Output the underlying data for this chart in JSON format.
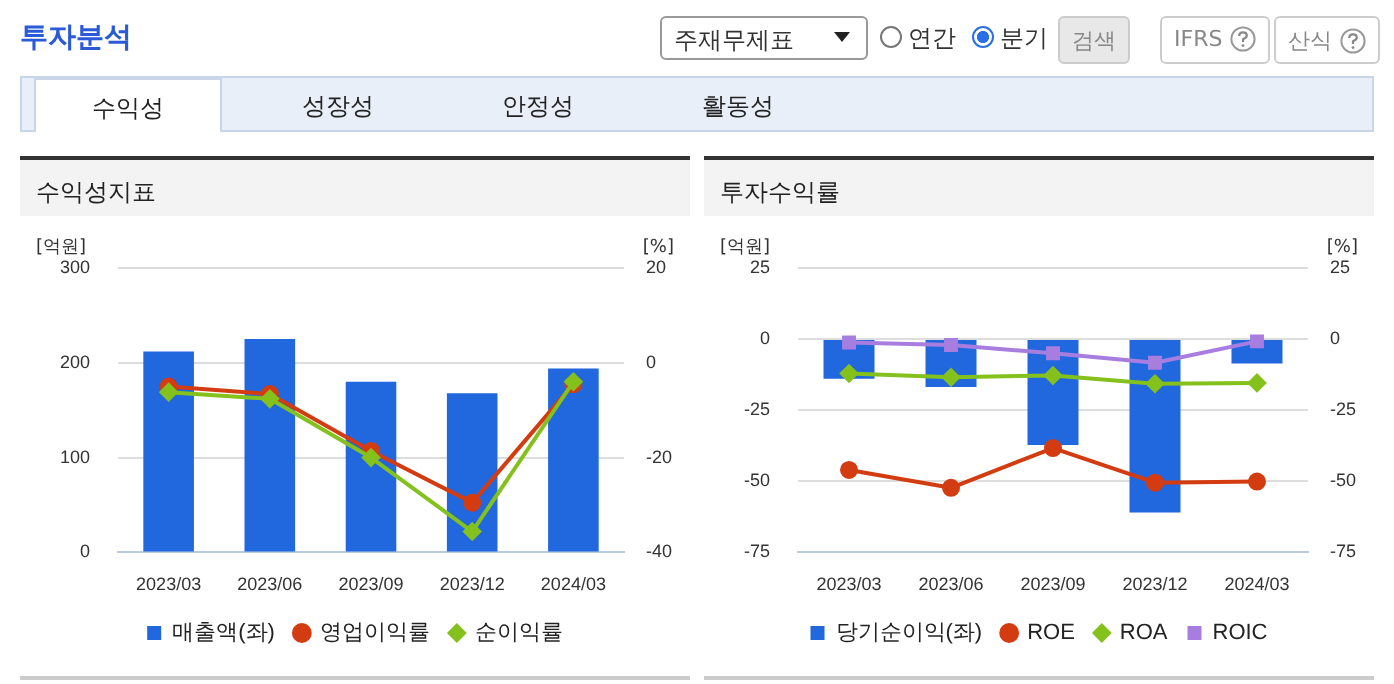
{
  "chart_data": [
    {
      "type": "bar",
      "title": "수익성지표",
      "ylabel": "[억원]",
      "y2label": "[%]",
      "annotations": [
        "투자분석",
        "주재무제표",
        "연간",
        "분기",
        "검색",
        "IFRS",
        "산식",
        "수익성",
        "성장성",
        "안정성",
        "활동성"
      ],
      "categories": [
        "2023/03",
        "2023/06",
        "2023/09",
        "2023/12",
        "2024/03"
      ],
      "series": [
        {
          "name": "매출액(좌)",
          "color": "#2167dd",
          "values": [
            212,
            225,
            180,
            168,
            194
          ]
        },
        {
          "name": "영업이익률",
          "type": "line",
          "axis": "y2",
          "marker": "circle",
          "color": "#d33c10",
          "values": [
            -5,
            -6.6,
            -18.6,
            -29.5,
            -4.5
          ]
        },
        {
          "name": "순이익률",
          "type": "line",
          "axis": "y2",
          "marker": "diamond",
          "color": "#84c11d",
          "values": [
            -6.2,
            -7.6,
            -20,
            -35.6,
            -4
          ]
        }
      ],
      "ylim": [
        0,
        300
      ],
      "yticks": [
        0,
        100,
        200,
        300
      ],
      "y2lim": [
        -40,
        20
      ],
      "y2ticks": [
        -40,
        -20,
        0,
        20
      ],
      "grid": "y",
      "legend": "bottom"
    },
    {
      "type": "bar",
      "title": "투자수익률",
      "ylabel": "[억원]",
      "y2label": "[%]",
      "categories": [
        "2023/03",
        "2023/06",
        "2023/09",
        "2023/12",
        "2024/03"
      ],
      "series": [
        {
          "name": "당기순이익(좌)",
          "color": "#2167dd",
          "values": [
            -13.9,
            -16.8,
            -37.2,
            -61,
            -8.6
          ]
        },
        {
          "name": "ROE",
          "type": "line",
          "axis": "y2",
          "marker": "circle",
          "color": "#d33c10",
          "values": [
            -46,
            -52.3,
            -38.3,
            -50.5,
            -50.1
          ]
        },
        {
          "name": "ROA",
          "type": "line",
          "axis": "y2",
          "marker": "diamond",
          "color": "#84c11d",
          "values": [
            -12.1,
            -13.4,
            -12.8,
            -15.7,
            -15.4
          ]
        },
        {
          "name": "ROIC",
          "type": "line",
          "axis": "y2",
          "marker": "square",
          "color": "#a77ee0",
          "values": [
            -1.2,
            -2.1,
            -5,
            -8.3,
            -0.8
          ]
        }
      ],
      "ylim": [
        -75,
        25
      ],
      "yticks": [
        -75,
        -50,
        -25,
        0,
        25
      ],
      "y2lim": [
        -75,
        25
      ],
      "y2ticks": [
        -75,
        -50,
        -25,
        0,
        25
      ],
      "grid": "y",
      "legend": "bottom"
    }
  ]
}
